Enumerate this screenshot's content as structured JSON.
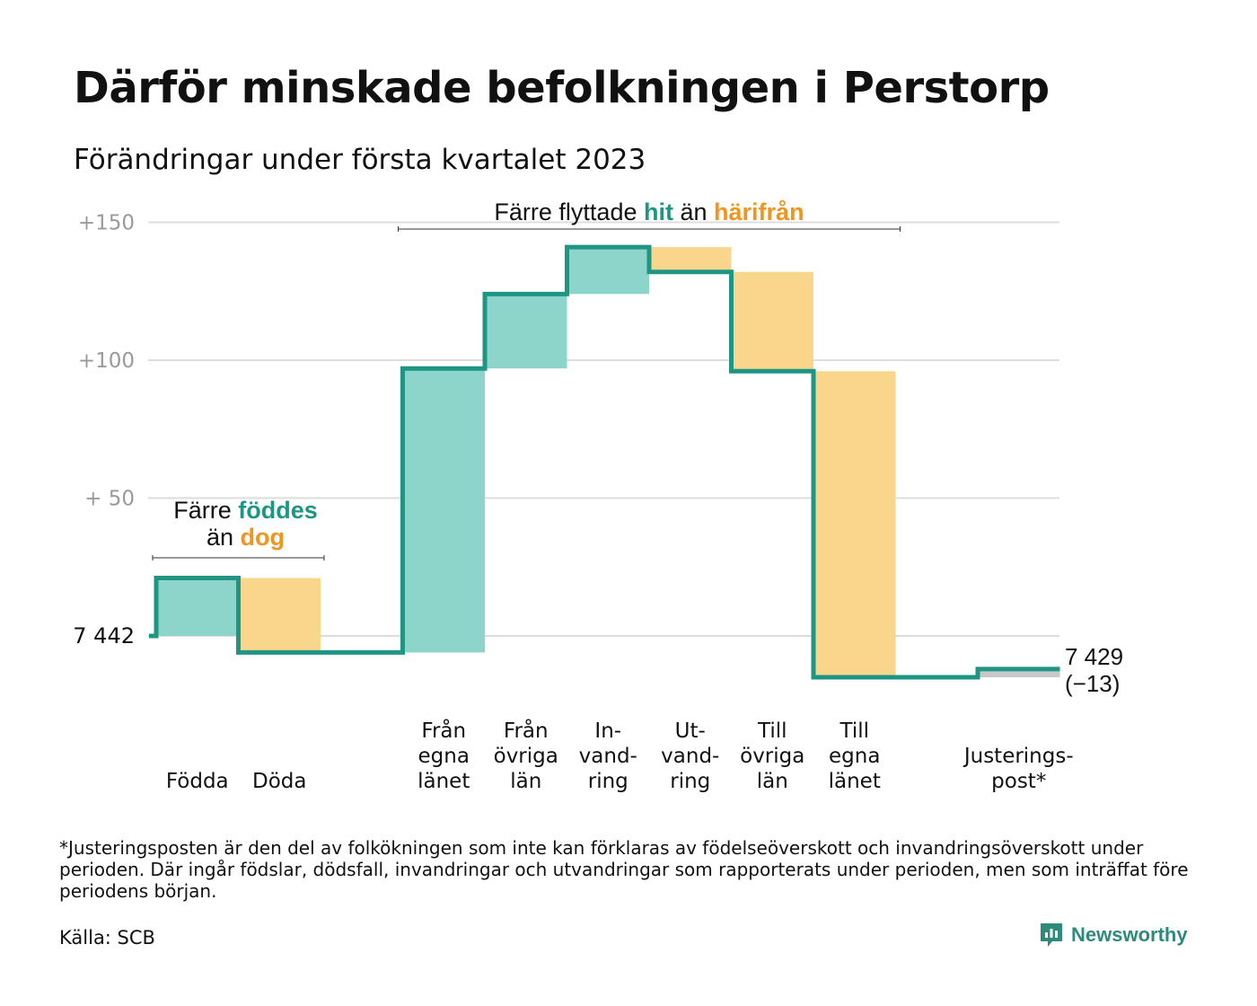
{
  "title": "Därför minskade befolkningen i Perstorp",
  "subtitle": "Förändringar under första kvartalet 2023",
  "footnote": "*Justeringsposten är den del av folkökningen som inte kan förklaras av födelseöverskott och invandringsöverskott under perioden. Där ingår födslar, dödsfall, invandringar och utvandringar som rapporterats under perioden, men som inträffat före periodens början.",
  "source": "Källa: SCB",
  "logo": {
    "text": "Newsworthy",
    "icon": "newsworthy-logo-icon"
  },
  "colors": {
    "increase": "#8dd4ca",
    "decrease": "#fad68c",
    "adjustment": "#c8c8c8",
    "line": "#1f9583",
    "accent_hit": "#1f9583",
    "accent_harifran": "#f0961e",
    "grid": "#dddddd",
    "axis_text": "#9a9a9a"
  },
  "chart_data": {
    "type": "waterfall",
    "title": "Därför minskade befolkningen i Perstorp",
    "subtitle": "Förändringar under första kvartalet 2023",
    "start_value": 7442,
    "start_label": "7 442",
    "end_value": 7429,
    "end_label": [
      "7 429",
      "(−13)"
    ],
    "y_ticks": [
      {
        "value": 50,
        "label": "+ 50"
      },
      {
        "value": 100,
        "label": "+100"
      },
      {
        "value": 150,
        "label": "+150"
      }
    ],
    "ylim": [
      -22,
      152
    ],
    "grid": true,
    "steps": [
      {
        "label": [
          "Födda"
        ],
        "change": 21
      },
      {
        "label": [
          "Döda"
        ],
        "change": -27
      },
      {
        "label": [],
        "change": 0
      },
      {
        "label": [
          "Från",
          "egna",
          "länet"
        ],
        "change": 103
      },
      {
        "label": [
          "Från",
          "övriga",
          "län"
        ],
        "change": 27
      },
      {
        "label": [
          "In-",
          "vand-",
          "ring"
        ],
        "change": 17
      },
      {
        "label": [
          "Ut-",
          "vand-",
          "ring"
        ],
        "change": -9
      },
      {
        "label": [
          "Till",
          "övriga",
          "län"
        ],
        "change": -36
      },
      {
        "label": [
          "Till",
          "egna",
          "länet"
        ],
        "change": -111
      },
      {
        "label": [],
        "change": 0
      },
      {
        "label": [
          "Justerings-",
          "post*"
        ],
        "change": 3,
        "kind": "adjustment"
      }
    ],
    "annotations": [
      {
        "parts": [
          [
            "Färre ",
            "plain"
          ],
          [
            "föddes",
            "hit"
          ]
        ],
        "parts2": [
          [
            "än ",
            "plain"
          ],
          [
            "dog",
            "harifran"
          ]
        ],
        "from_step": 0,
        "to_step": 1
      },
      {
        "parts": [
          [
            "Färre flyttade ",
            "plain"
          ],
          [
            "hit",
            "hit"
          ],
          [
            " än ",
            "plain"
          ],
          [
            "härifrån",
            "harifran"
          ]
        ],
        "from_step": 3,
        "to_step": 8
      }
    ]
  }
}
